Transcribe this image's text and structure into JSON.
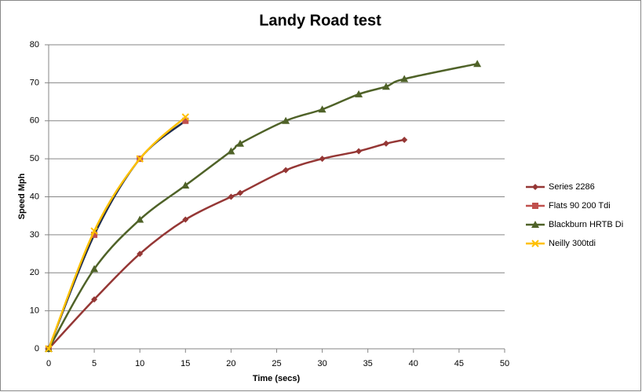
{
  "chart_data": {
    "type": "line",
    "smooth": true,
    "title": "Landy Road test",
    "x_label": "Time (secs)",
    "y_label": "Speed Mph",
    "xlim": [
      0,
      50
    ],
    "xticks": [
      0,
      5,
      10,
      15,
      20,
      25,
      30,
      35,
      40,
      45,
      50
    ],
    "ylim": [
      0,
      80
    ],
    "yticks": [
      0,
      10,
      20,
      30,
      40,
      50,
      60,
      70,
      80
    ],
    "grid": true,
    "legend": "right",
    "series": [
      {
        "name": "Series 2286",
        "color": "#953735",
        "line_color": "#953735",
        "marker": "diamond",
        "x": [
          0,
          5,
          10,
          15,
          20,
          21,
          26,
          30,
          34,
          37,
          39
        ],
        "values": [
          0,
          13,
          25,
          34,
          40,
          41,
          47,
          50,
          52,
          54,
          55
        ]
      },
      {
        "name": "Flats 90  200 Tdi",
        "color": "#c0504d",
        "line_color": "#1f2d4f",
        "marker": "square",
        "x": [
          0,
          5,
          10,
          15
        ],
        "values": [
          0,
          30,
          50,
          60
        ]
      },
      {
        "name": "Blackburn HRTB Di",
        "color": "#4f6228",
        "line_color": "#4f6228",
        "marker": "triangle",
        "x": [
          0,
          5,
          10,
          15,
          20,
          21,
          26,
          30,
          34,
          37,
          39,
          47
        ],
        "values": [
          0,
          21,
          34,
          43,
          52,
          54,
          60,
          63,
          67,
          69,
          71,
          75
        ]
      },
      {
        "name": "Neilly 300tdi",
        "color": "#ffc000",
        "line_color": "#ffc000",
        "marker": "x",
        "x": [
          0,
          5,
          10,
          15
        ],
        "values": [
          0,
          31,
          50,
          61
        ]
      }
    ]
  }
}
